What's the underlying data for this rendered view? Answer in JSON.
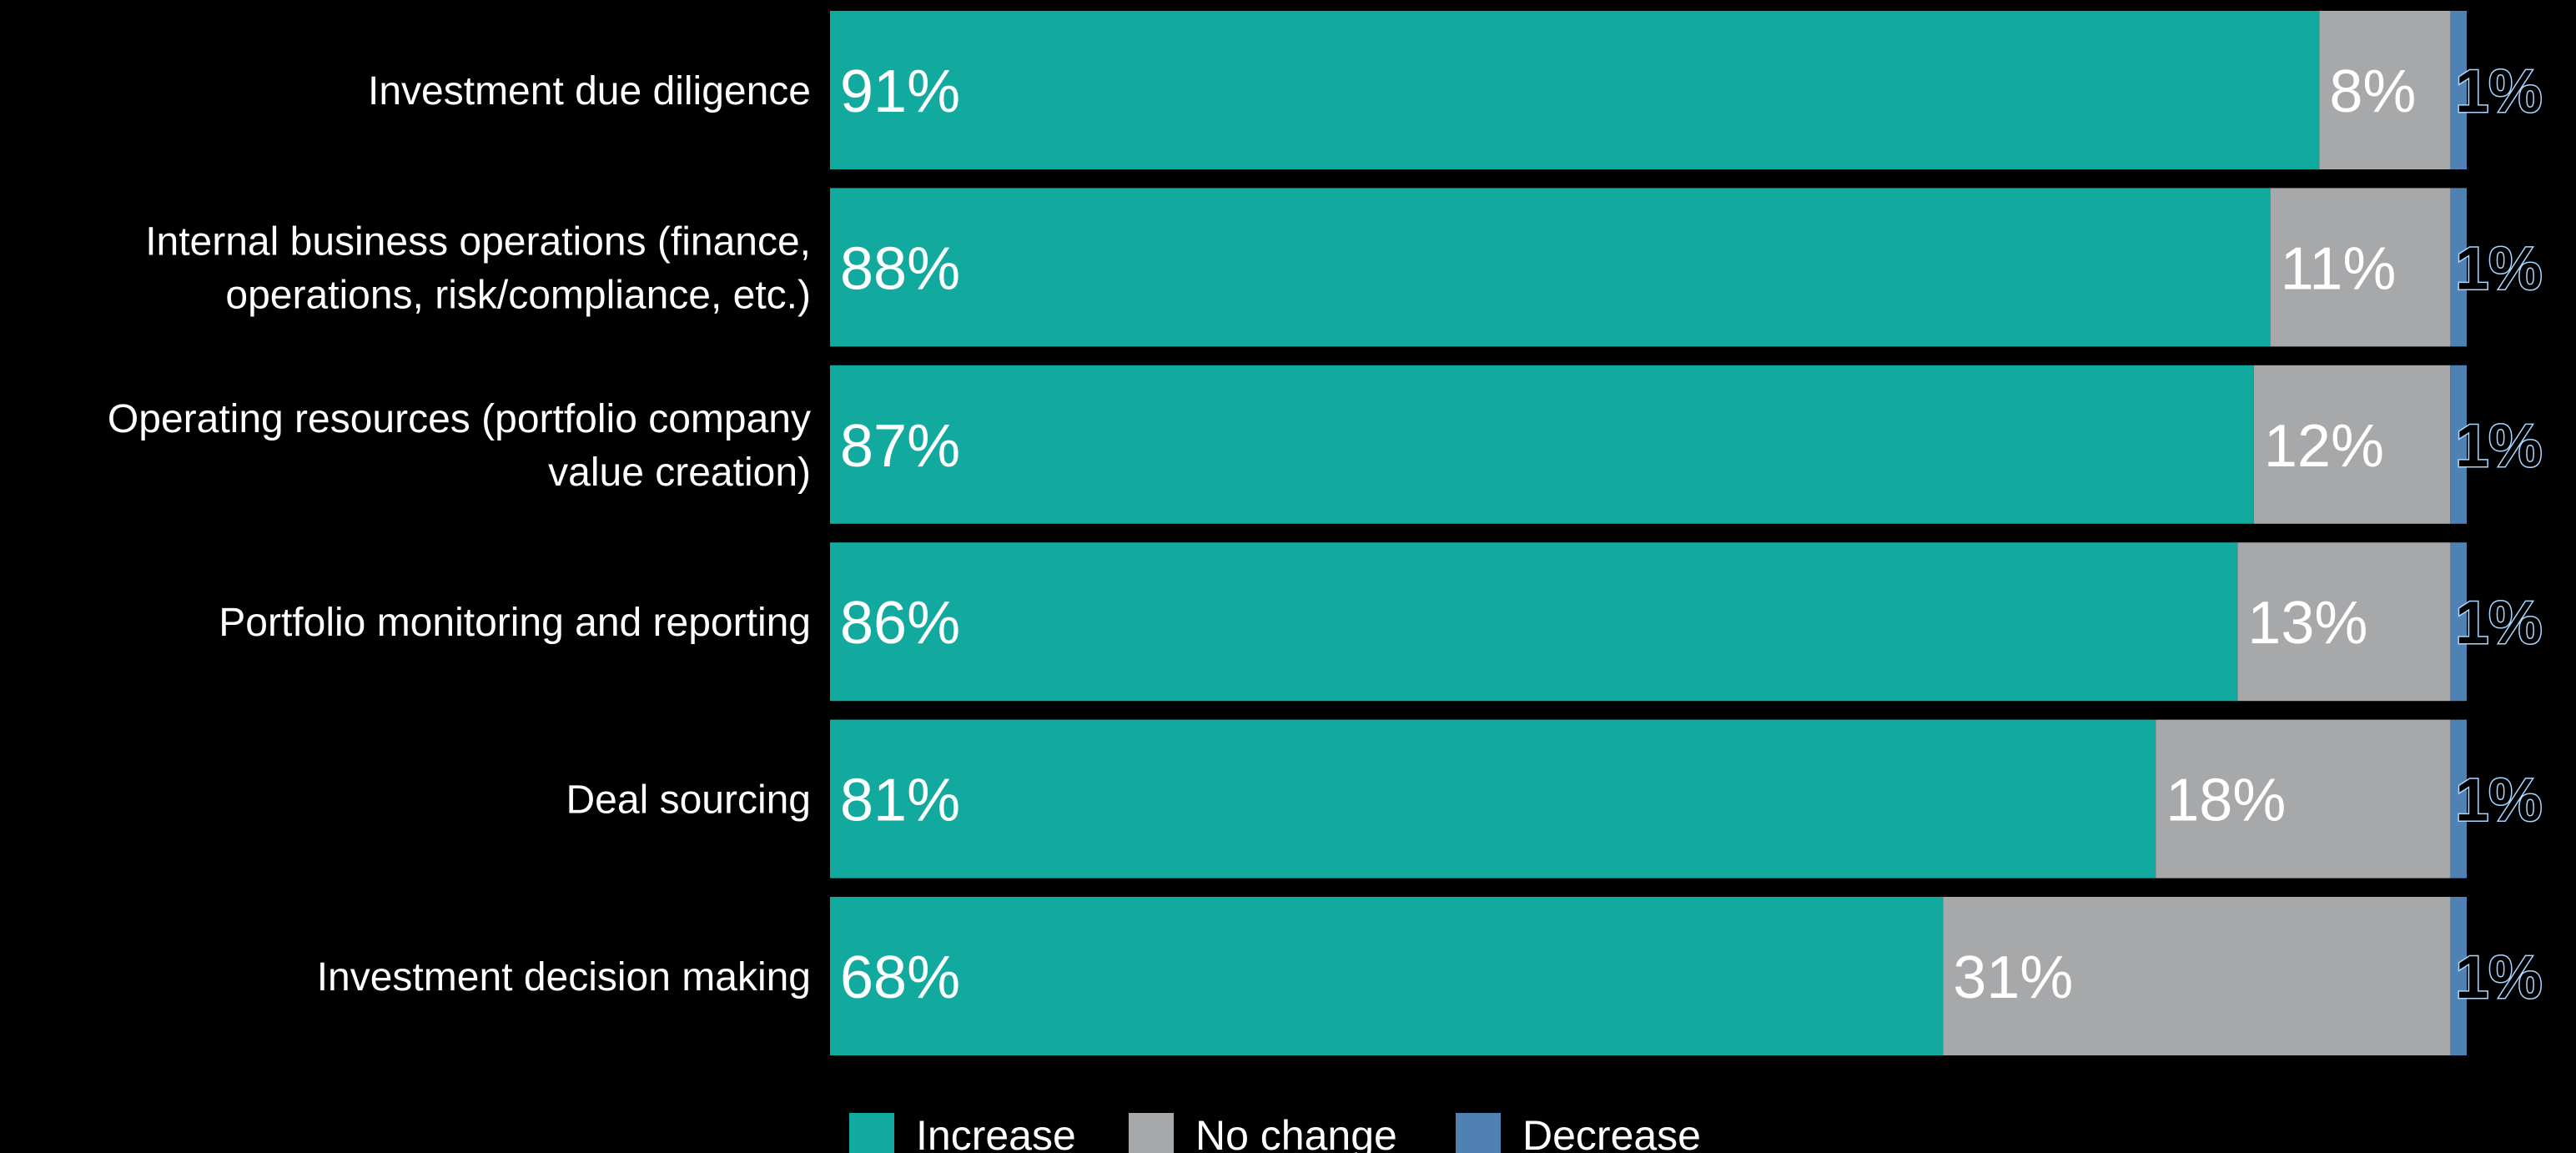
{
  "chart_data": {
    "type": "bar",
    "orientation": "horizontal",
    "stacked": true,
    "categories": [
      [
        "Investment due diligence"
      ],
      [
        "Internal business operations (finance,",
        "operations, risk/compliance, etc.)"
      ],
      [
        "Operating resources (portfolio company",
        "value creation)"
      ],
      [
        "Portfolio monitoring and reporting"
      ],
      [
        "Deal sourcing"
      ],
      [
        "Investment decision making"
      ]
    ],
    "series": [
      {
        "name": "Increase",
        "color": "#12aa9f",
        "values": [
          91,
          88,
          87,
          86,
          81,
          68
        ]
      },
      {
        "name": "No change",
        "color": "#a7a8aa",
        "values": [
          8,
          11,
          12,
          13,
          18,
          31
        ]
      },
      {
        "name": "Decrease",
        "color": "#4f81b3",
        "values": [
          1,
          1,
          1,
          1,
          1,
          1
        ]
      }
    ],
    "value_suffix": "%",
    "xlim": [
      0,
      100
    ],
    "grid": false,
    "legend": "bottom"
  }
}
